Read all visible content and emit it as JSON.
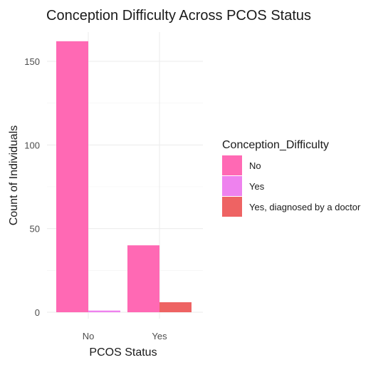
{
  "chart_data": {
    "type": "bar",
    "title": "Conception Difficulty Across PCOS Status",
    "xlabel": "PCOS Status",
    "ylabel": "Count of Individuals",
    "categories": [
      "No",
      "Yes"
    ],
    "series": [
      {
        "name": "No",
        "color": "#FF69B4",
        "values": [
          162,
          40
        ]
      },
      {
        "name": "Yes",
        "color": "#EE82EE",
        "values": [
          1,
          0
        ]
      },
      {
        "name": "Yes, diagnosed by a doctor",
        "color": "#EE6363",
        "values": [
          0,
          6
        ]
      }
    ],
    "ylim": [
      0,
      170
    ],
    "yticks": [
      0,
      50,
      100,
      150
    ],
    "grid": true,
    "legend": {
      "title": "Conception_Difficulty",
      "position": "right"
    }
  }
}
